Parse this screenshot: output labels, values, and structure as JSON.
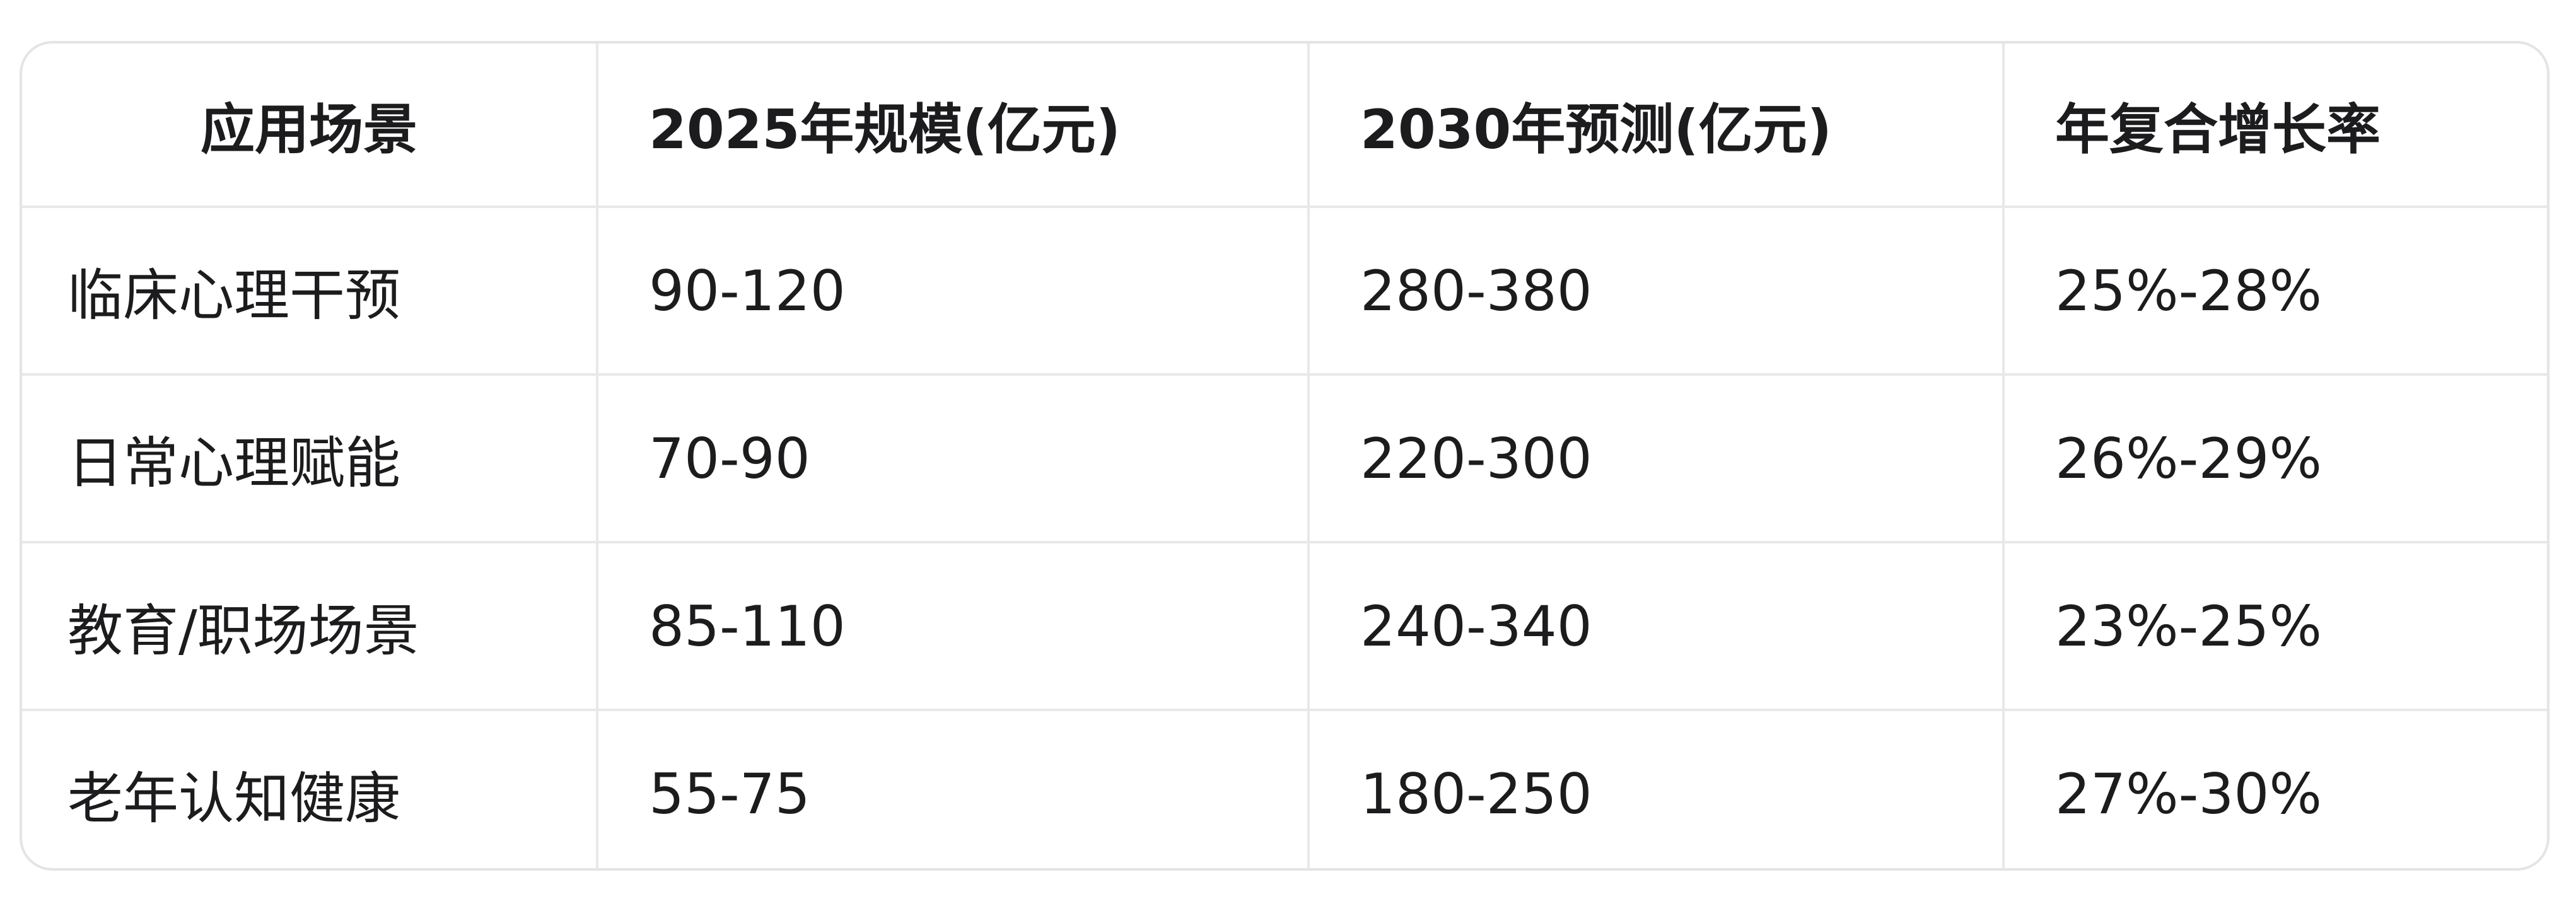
{
  "table": {
    "headers": [
      "应用场景",
      "2025年规模(亿元)",
      "2030年预测(亿元)",
      "年复合增长率"
    ],
    "rows": [
      [
        "临床心理干预",
        "90-120",
        "280-380",
        "25%-28%"
      ],
      [
        "日常心理赋能",
        "70-90",
        "220-300",
        "26%-29%"
      ],
      [
        "教育/职场场景",
        "85-110",
        "240-340",
        "23%-25%"
      ],
      [
        "老年认知健康",
        "55-75",
        "180-250",
        "27%-30%"
      ]
    ]
  }
}
